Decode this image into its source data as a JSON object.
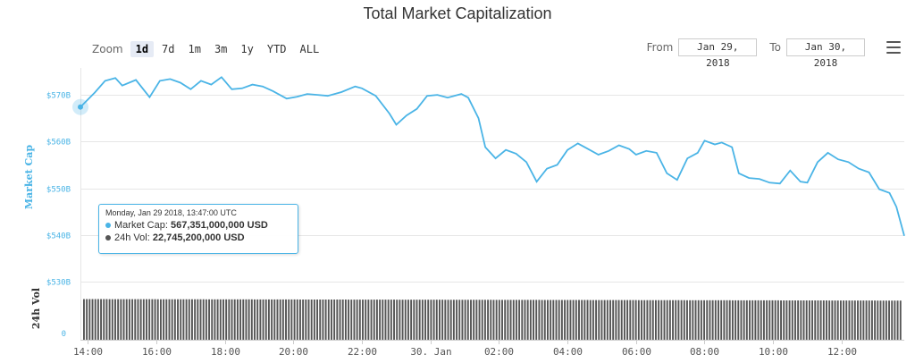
{
  "header": {
    "title": "Total Market Capitalization"
  },
  "zoom": {
    "label": "Zoom",
    "options": [
      {
        "label": "1d",
        "active": true
      },
      {
        "label": "7d",
        "active": false
      },
      {
        "label": "1m",
        "active": false
      },
      {
        "label": "3m",
        "active": false
      },
      {
        "label": "1y",
        "active": false
      },
      {
        "label": "YTD",
        "active": false
      },
      {
        "label": "ALL",
        "active": false
      }
    ]
  },
  "range": {
    "from_label": "From",
    "from_value": "Jan 29, 2018",
    "to_label": "To",
    "to_value": "Jan 30, 2018"
  },
  "menu": {
    "icon": "hamburger-icon"
  },
  "tooltip": {
    "date": "Monday, Jan 29 2018, 13:47:00 UTC",
    "market_cap_label": "Market Cap:",
    "market_cap_value": "567,351,000,000 USD",
    "volume_label": "24h Vol:",
    "volume_value": "22,745,200,000 USD",
    "market_cap_color": "#4ab4e6",
    "volume_color": "#555555"
  },
  "chart_data": {
    "type": "line",
    "title": "Total Market Capitalization",
    "ylabel": "Market Cap",
    "y2label": "24h Vol",
    "ylim": [
      530,
      575
    ],
    "y_tick_values": [
      530,
      540,
      550,
      560,
      570
    ],
    "y_tick_labels": [
      "$530B",
      "$540B",
      "$550B",
      "$560B",
      "$570B"
    ],
    "y2_tick_labels": [
      "0"
    ],
    "x_tick_labels": [
      "14:00",
      "16:00",
      "18:00",
      "20:00",
      "22:00",
      "30. Jan",
      "02:00",
      "04:00",
      "06:00",
      "08:00",
      "10:00",
      "12:00"
    ],
    "x_tick_hours": [
      14,
      16,
      18,
      20,
      22,
      24,
      26,
      28,
      30,
      32,
      34,
      36
    ],
    "xlim_hours": [
      13.78,
      37.83
    ],
    "grid": true,
    "colors": {
      "market_cap": "#4ab4e6",
      "volume": "#555555"
    },
    "series": [
      {
        "name": "Market Cap",
        "x_hours": [
          13.78,
          14.2,
          14.5,
          14.8,
          15.0,
          15.4,
          15.8,
          16.1,
          16.4,
          16.7,
          17.0,
          17.3,
          17.6,
          17.9,
          18.2,
          18.5,
          18.8,
          19.1,
          19.4,
          19.8,
          20.1,
          20.4,
          20.7,
          21.0,
          21.4,
          21.8,
          22.0,
          22.4,
          22.8,
          23.0,
          23.3,
          23.6,
          23.9,
          24.2,
          24.5,
          24.9,
          25.1,
          25.4,
          25.6,
          25.9,
          26.2,
          26.5,
          26.8,
          27.1,
          27.4,
          27.7,
          28.0,
          28.3,
          28.6,
          28.9,
          29.2,
          29.5,
          29.8,
          30.0,
          30.3,
          30.6,
          30.9,
          31.2,
          31.5,
          31.8,
          32.0,
          32.3,
          32.5,
          32.8,
          33.0,
          33.3,
          33.6,
          33.9,
          34.2,
          34.5,
          34.8,
          35.0,
          35.3,
          35.6,
          35.9,
          36.2,
          36.5,
          36.8,
          37.1,
          37.4,
          37.6,
          37.83
        ],
        "values": [
          567.4,
          570.5,
          573.0,
          573.6,
          572.0,
          573.2,
          569.5,
          573.0,
          573.4,
          572.6,
          571.2,
          573.0,
          572.2,
          573.8,
          571.2,
          571.4,
          572.2,
          571.8,
          570.8,
          569.2,
          569.6,
          570.2,
          570.0,
          569.8,
          570.6,
          571.8,
          571.4,
          569.8,
          566.0,
          563.6,
          565.6,
          567.0,
          569.8,
          570.0,
          569.4,
          570.2,
          569.4,
          565.0,
          558.8,
          556.4,
          558.2,
          557.4,
          555.6,
          551.4,
          554.2,
          555.0,
          558.2,
          559.6,
          558.4,
          557.2,
          558.0,
          559.2,
          558.4,
          557.2,
          558.0,
          557.6,
          553.2,
          551.8,
          556.4,
          557.6,
          560.2,
          559.4,
          559.8,
          558.8,
          553.2,
          552.2,
          552.0,
          551.2,
          551.0,
          553.8,
          551.4,
          551.2,
          555.6,
          557.6,
          556.2,
          555.6,
          554.2,
          553.4,
          549.8,
          549.0,
          546.0,
          539.8
        ]
      },
      {
        "name": "24h Vol",
        "values_usd_bn": {
          "start": 22.75,
          "end": 21.9,
          "axis_max": 30.0
        }
      }
    ]
  }
}
